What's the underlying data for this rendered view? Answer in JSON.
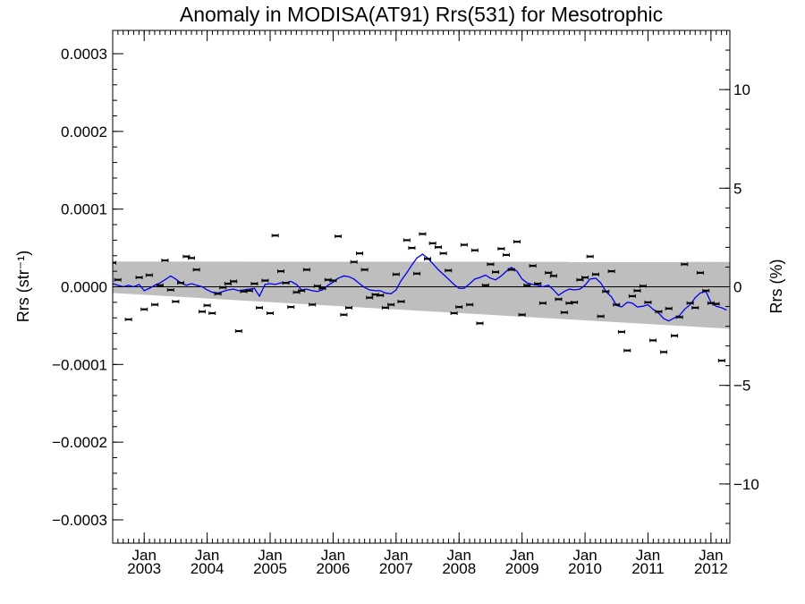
{
  "chart_data": {
    "type": "scatter",
    "title": "Anomaly in MODISA(AT91) Rrs(531) for Mesotrophic",
    "ylabel": "Rrs (str⁻¹)",
    "ylabel_right": "Rrs (%)",
    "xlim": [
      2002.5,
      2012.3
    ],
    "ylim": [
      -0.00033,
      0.00033
    ],
    "ylim_right": [
      -13,
      13
    ],
    "x_tick_labels": [
      {
        "x": 2003.0,
        "month": "Jan",
        "year": "2003"
      },
      {
        "x": 2004.0,
        "month": "Jan",
        "year": "2004"
      },
      {
        "x": 2005.0,
        "month": "Jan",
        "year": "2005"
      },
      {
        "x": 2006.0,
        "month": "Jan",
        "year": "2006"
      },
      {
        "x": 2007.0,
        "month": "Jan",
        "year": "2007"
      },
      {
        "x": 2008.0,
        "month": "Jan",
        "year": "2008"
      },
      {
        "x": 2009.0,
        "month": "Jan",
        "year": "2009"
      },
      {
        "x": 2010.0,
        "month": "Jan",
        "year": "2010"
      },
      {
        "x": 2011.0,
        "month": "Jan",
        "year": "2011"
      },
      {
        "x": 2012.0,
        "month": "Jan",
        "year": "2012"
      }
    ],
    "y_ticks_left": [
      {
        "v": 0.0003,
        "label": "0.0003"
      },
      {
        "v": 0.0002,
        "label": "0.0002"
      },
      {
        "v": 0.0001,
        "label": "0.0001"
      },
      {
        "v": 0.0,
        "label": "0.0000"
      },
      {
        "v": -0.0001,
        "label": "−0.0001"
      },
      {
        "v": -0.0002,
        "label": "−0.0002"
      },
      {
        "v": -0.0003,
        "label": "−0.0003"
      }
    ],
    "y_ticks_right": [
      {
        "v": 10,
        "label": "10"
      },
      {
        "v": 5,
        "label": "5"
      },
      {
        "v": 0,
        "label": "0"
      },
      {
        "v": -5,
        "label": "−5"
      },
      {
        "v": -10,
        "label": "−10"
      }
    ],
    "band": {
      "upper": [
        [
          2002.5,
          3.25e-05
        ],
        [
          2012.3,
          3.2e-05
        ]
      ],
      "lower": [
        [
          2002.5,
          -8e-06
        ],
        [
          2012.3,
          -5.4e-05
        ]
      ]
    },
    "colors": {
      "series": "#0000ee",
      "points": "#000000",
      "band": "#bebebe",
      "zero_line": "#000000"
    },
    "series": [
      {
        "type": "line",
        "values": [
          [
            2002.5,
            4e-06
          ],
          [
            2002.58,
            2e-06
          ],
          [
            2002.67,
            0.0
          ],
          [
            2002.75,
            2e-06
          ],
          [
            2002.83,
            0.0
          ],
          [
            2002.92,
            3e-06
          ],
          [
            2003.0,
            -5e-06
          ],
          [
            2003.08,
            -2e-06
          ],
          [
            2003.17,
            2e-06
          ],
          [
            2003.25,
            5e-06
          ],
          [
            2003.33,
            9e-06
          ],
          [
            2003.42,
            1.4e-05
          ],
          [
            2003.5,
            1e-05
          ],
          [
            2003.58,
            5e-06
          ],
          [
            2003.67,
            2e-06
          ],
          [
            2003.75,
            4e-06
          ],
          [
            2003.83,
            2e-06
          ],
          [
            2003.92,
            0.0
          ],
          [
            2004.0,
            -4e-06
          ],
          [
            2004.08,
            -7e-06
          ],
          [
            2004.17,
            -8e-06
          ],
          [
            2004.25,
            -6e-06
          ],
          [
            2004.33,
            -4e-06
          ],
          [
            2004.42,
            -3e-06
          ],
          [
            2004.5,
            -5e-06
          ],
          [
            2004.58,
            -4e-06
          ],
          [
            2004.67,
            -3e-06
          ],
          [
            2004.75,
            -2e-06
          ],
          [
            2004.83,
            -1.2e-05
          ],
          [
            2004.92,
            3e-06
          ],
          [
            2005.0,
            4e-06
          ],
          [
            2005.08,
            3e-06
          ],
          [
            2005.17,
            5e-06
          ],
          [
            2005.25,
            5e-06
          ],
          [
            2005.33,
            7e-06
          ],
          [
            2005.42,
            3e-06
          ],
          [
            2005.5,
            -4e-06
          ],
          [
            2005.58,
            -3e-06
          ],
          [
            2005.67,
            -5e-06
          ],
          [
            2005.75,
            -6e-06
          ],
          [
            2005.83,
            -4e-06
          ],
          [
            2005.92,
            2e-06
          ],
          [
            2006.0,
            6e-06
          ],
          [
            2006.08,
            1.1e-05
          ],
          [
            2006.17,
            1.4e-05
          ],
          [
            2006.25,
            1.3e-05
          ],
          [
            2006.33,
            1e-05
          ],
          [
            2006.42,
            4e-06
          ],
          [
            2006.5,
            -1e-06
          ],
          [
            2006.58,
            -4e-06
          ],
          [
            2006.67,
            -5e-06
          ],
          [
            2006.75,
            -5e-06
          ],
          [
            2006.83,
            -8e-06
          ],
          [
            2006.92,
            -9e-06
          ],
          [
            2007.0,
            -4e-06
          ],
          [
            2007.08,
            8e-06
          ],
          [
            2007.17,
            1.8e-05
          ],
          [
            2007.25,
            2.8e-05
          ],
          [
            2007.33,
            3.7e-05
          ],
          [
            2007.42,
            4.2e-05
          ],
          [
            2007.5,
            3.7e-05
          ],
          [
            2007.58,
            3e-05
          ],
          [
            2007.67,
            2.2e-05
          ],
          [
            2007.75,
            1.6e-05
          ],
          [
            2007.83,
            1e-05
          ],
          [
            2007.92,
            3e-06
          ],
          [
            2008.0,
            -2e-06
          ],
          [
            2008.08,
            -2e-06
          ],
          [
            2008.17,
            4e-06
          ],
          [
            2008.25,
            1e-05
          ],
          [
            2008.33,
            1.2e-05
          ],
          [
            2008.42,
            1.5e-05
          ],
          [
            2008.5,
            1.1e-05
          ],
          [
            2008.58,
            9e-06
          ],
          [
            2008.67,
            1.4e-05
          ],
          [
            2008.75,
            2e-05
          ],
          [
            2008.83,
            2.5e-05
          ],
          [
            2008.92,
            2e-05
          ],
          [
            2009.0,
            1e-05
          ],
          [
            2009.08,
            5e-06
          ],
          [
            2009.17,
            3e-06
          ],
          [
            2009.25,
            2e-06
          ],
          [
            2009.33,
            0.0
          ],
          [
            2009.42,
            2e-06
          ],
          [
            2009.5,
            -4e-06
          ],
          [
            2009.58,
            -1.1e-05
          ],
          [
            2009.67,
            -6e-06
          ],
          [
            2009.75,
            -3e-06
          ],
          [
            2009.83,
            -4e-06
          ],
          [
            2009.92,
            -3e-06
          ],
          [
            2010.0,
            2e-06
          ],
          [
            2010.08,
            1e-05
          ],
          [
            2010.17,
            1.1e-05
          ],
          [
            2010.25,
            5e-06
          ],
          [
            2010.33,
            -6e-06
          ],
          [
            2010.42,
            -1.3e-05
          ],
          [
            2010.5,
            -2.4e-05
          ],
          [
            2010.58,
            -2.6e-05
          ],
          [
            2010.67,
            -2e-05
          ],
          [
            2010.75,
            -2.1e-05
          ],
          [
            2010.83,
            -2.6e-05
          ],
          [
            2010.92,
            -2.5e-05
          ],
          [
            2011.0,
            -2.3e-05
          ],
          [
            2011.08,
            -2.9e-05
          ],
          [
            2011.17,
            -3.4e-05
          ],
          [
            2011.25,
            -4.1e-05
          ],
          [
            2011.33,
            -4.4e-05
          ],
          [
            2011.42,
            -4e-05
          ],
          [
            2011.5,
            -3.7e-05
          ],
          [
            2011.58,
            -2.9e-05
          ],
          [
            2011.67,
            -2.3e-05
          ],
          [
            2011.75,
            -1.4e-05
          ],
          [
            2011.83,
            -8e-06
          ],
          [
            2011.92,
            -6e-06
          ],
          [
            2012.0,
            -2e-05
          ],
          [
            2012.08,
            -2.5e-05
          ],
          [
            2012.17,
            -2.7e-05
          ],
          [
            2012.25,
            -3e-05
          ]
        ]
      },
      {
        "type": "scatter",
        "values": [
          [
            2002.5,
            3.1e-05
          ],
          [
            2002.58,
            9e-06
          ],
          [
            2002.75,
            -4.2e-05
          ],
          [
            2002.92,
            1.2e-05
          ],
          [
            2003.0,
            -2.9e-05
          ],
          [
            2003.08,
            1.5e-05
          ],
          [
            2003.17,
            -2.3e-05
          ],
          [
            2003.25,
            2e-06
          ],
          [
            2003.33,
            3.4e-05
          ],
          [
            2003.42,
            -4e-06
          ],
          [
            2003.5,
            -1.9e-05
          ],
          [
            2003.58,
            5e-06
          ],
          [
            2003.67,
            3.9e-05
          ],
          [
            2003.75,
            3.7e-05
          ],
          [
            2003.83,
            2.2e-05
          ],
          [
            2003.92,
            -3.2e-05
          ],
          [
            2004.0,
            -2.4e-05
          ],
          [
            2004.08,
            -3.4e-05
          ],
          [
            2004.17,
            -9e-06
          ],
          [
            2004.25,
            -1e-06
          ],
          [
            2004.33,
            4e-06
          ],
          [
            2004.42,
            7e-06
          ],
          [
            2004.5,
            -5.7e-05
          ],
          [
            2004.58,
            -6e-06
          ],
          [
            2004.67,
            -5e-06
          ],
          [
            2004.75,
            4e-06
          ],
          [
            2004.83,
            -2.7e-05
          ],
          [
            2004.92,
            8e-06
          ],
          [
            2005.0,
            -3.4e-05
          ],
          [
            2005.08,
            6.6e-05
          ],
          [
            2005.17,
            2e-05
          ],
          [
            2005.25,
            5e-06
          ],
          [
            2005.33,
            -2.6e-05
          ],
          [
            2005.42,
            -7e-06
          ],
          [
            2005.5,
            -5e-06
          ],
          [
            2005.58,
            2.2e-05
          ],
          [
            2005.67,
            -2.3e-05
          ],
          [
            2005.75,
            1e-06
          ],
          [
            2005.83,
            -2e-06
          ],
          [
            2005.92,
            9e-06
          ],
          [
            2006.0,
            8e-06
          ],
          [
            2006.08,
            6.5e-05
          ],
          [
            2006.17,
            -3.6e-05
          ],
          [
            2006.25,
            -2.7e-05
          ],
          [
            2006.33,
            3.2e-05
          ],
          [
            2006.42,
            4.3e-05
          ],
          [
            2006.5,
            2.2e-05
          ],
          [
            2006.58,
            -1.4e-05
          ],
          [
            2006.67,
            -1e-05
          ],
          [
            2006.75,
            -1.1e-05
          ],
          [
            2006.83,
            -2.7e-05
          ],
          [
            2006.92,
            -2.3e-05
          ],
          [
            2007.0,
            1.6e-05
          ],
          [
            2007.08,
            -1.9e-05
          ],
          [
            2007.17,
            6e-05
          ],
          [
            2007.25,
            5e-05
          ],
          [
            2007.33,
            1.7e-05
          ],
          [
            2007.42,
            6.8e-05
          ],
          [
            2007.5,
            3.6e-05
          ],
          [
            2007.58,
            5.6e-05
          ],
          [
            2007.67,
            5.1e-05
          ],
          [
            2007.75,
            4.3e-05
          ],
          [
            2007.83,
            2.1e-05
          ],
          [
            2007.92,
            -3.4e-05
          ],
          [
            2008.0,
            -2.6e-05
          ],
          [
            2008.08,
            5.4e-05
          ],
          [
            2008.17,
            -2.3e-05
          ],
          [
            2008.25,
            4.7e-05
          ],
          [
            2008.33,
            -4.7e-05
          ],
          [
            2008.42,
            2e-06
          ],
          [
            2008.5,
            2.9e-05
          ],
          [
            2008.58,
            1.9e-05
          ],
          [
            2008.67,
            4.9e-05
          ],
          [
            2008.75,
            4.1e-05
          ],
          [
            2008.83,
            2.2e-05
          ],
          [
            2008.92,
            5.8e-05
          ],
          [
            2009.0,
            -3.6e-05
          ],
          [
            2009.08,
            2e-06
          ],
          [
            2009.17,
            2.7e-05
          ],
          [
            2009.25,
            4e-06
          ],
          [
            2009.33,
            -2.1e-05
          ],
          [
            2009.42,
            1.8e-05
          ],
          [
            2009.5,
            1.4e-05
          ],
          [
            2009.58,
            -1.6e-05
          ],
          [
            2009.67,
            -3.3e-05
          ],
          [
            2009.75,
            -2.1e-05
          ],
          [
            2009.83,
            -2e-05
          ],
          [
            2009.92,
            9e-06
          ],
          [
            2010.0,
            1.2e-05
          ],
          [
            2010.08,
            3.9e-05
          ],
          [
            2010.17,
            1.6e-05
          ],
          [
            2010.25,
            -3.8e-05
          ],
          [
            2010.33,
            -6e-06
          ],
          [
            2010.42,
            2e-05
          ],
          [
            2010.5,
            -2.3e-05
          ],
          [
            2010.58,
            -5.8e-05
          ],
          [
            2010.67,
            -8.2e-05
          ],
          [
            2010.75,
            -1.2e-05
          ],
          [
            2010.83,
            -5e-06
          ],
          [
            2010.92,
            1e-06
          ],
          [
            2011.0,
            -2e-05
          ],
          [
            2011.08,
            -6.9e-05
          ],
          [
            2011.17,
            -3.2e-05
          ],
          [
            2011.25,
            -8.4e-05
          ],
          [
            2011.33,
            -2.8e-05
          ],
          [
            2011.42,
            -6.3e-05
          ],
          [
            2011.5,
            -3.9e-05
          ],
          [
            2011.58,
            2.9e-05
          ],
          [
            2011.67,
            -2.1e-05
          ],
          [
            2011.75,
            -2.7e-05
          ],
          [
            2011.83,
            1.8e-05
          ],
          [
            2011.92,
            -5e-06
          ],
          [
            2012.0,
            -2.1e-05
          ],
          [
            2012.08,
            -2.2e-05
          ],
          [
            2012.17,
            -9.5e-05
          ]
        ]
      }
    ]
  }
}
